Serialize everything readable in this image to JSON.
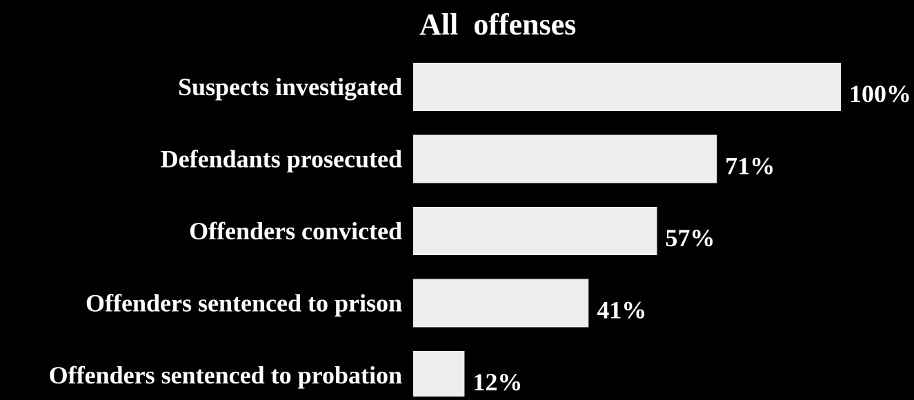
{
  "chart_data": {
    "type": "bar",
    "orientation": "horizontal",
    "title": "All  offenses",
    "categories": [
      "Suspects investigated",
      "Defendants prosecuted",
      "Offenders convicted",
      "Offenders sentenced to prison",
      "Offenders sentenced to probation"
    ],
    "values": [
      100,
      71,
      57,
      41,
      12
    ],
    "data_labels": [
      "100%",
      "71%",
      "57%",
      "41%",
      "12%"
    ],
    "xlim": [
      0,
      100
    ],
    "unit": "%",
    "grid": false,
    "legend": "none",
    "colors": {
      "background": "#000000",
      "bar": "#eeeeee",
      "text": "#ffffff"
    }
  }
}
